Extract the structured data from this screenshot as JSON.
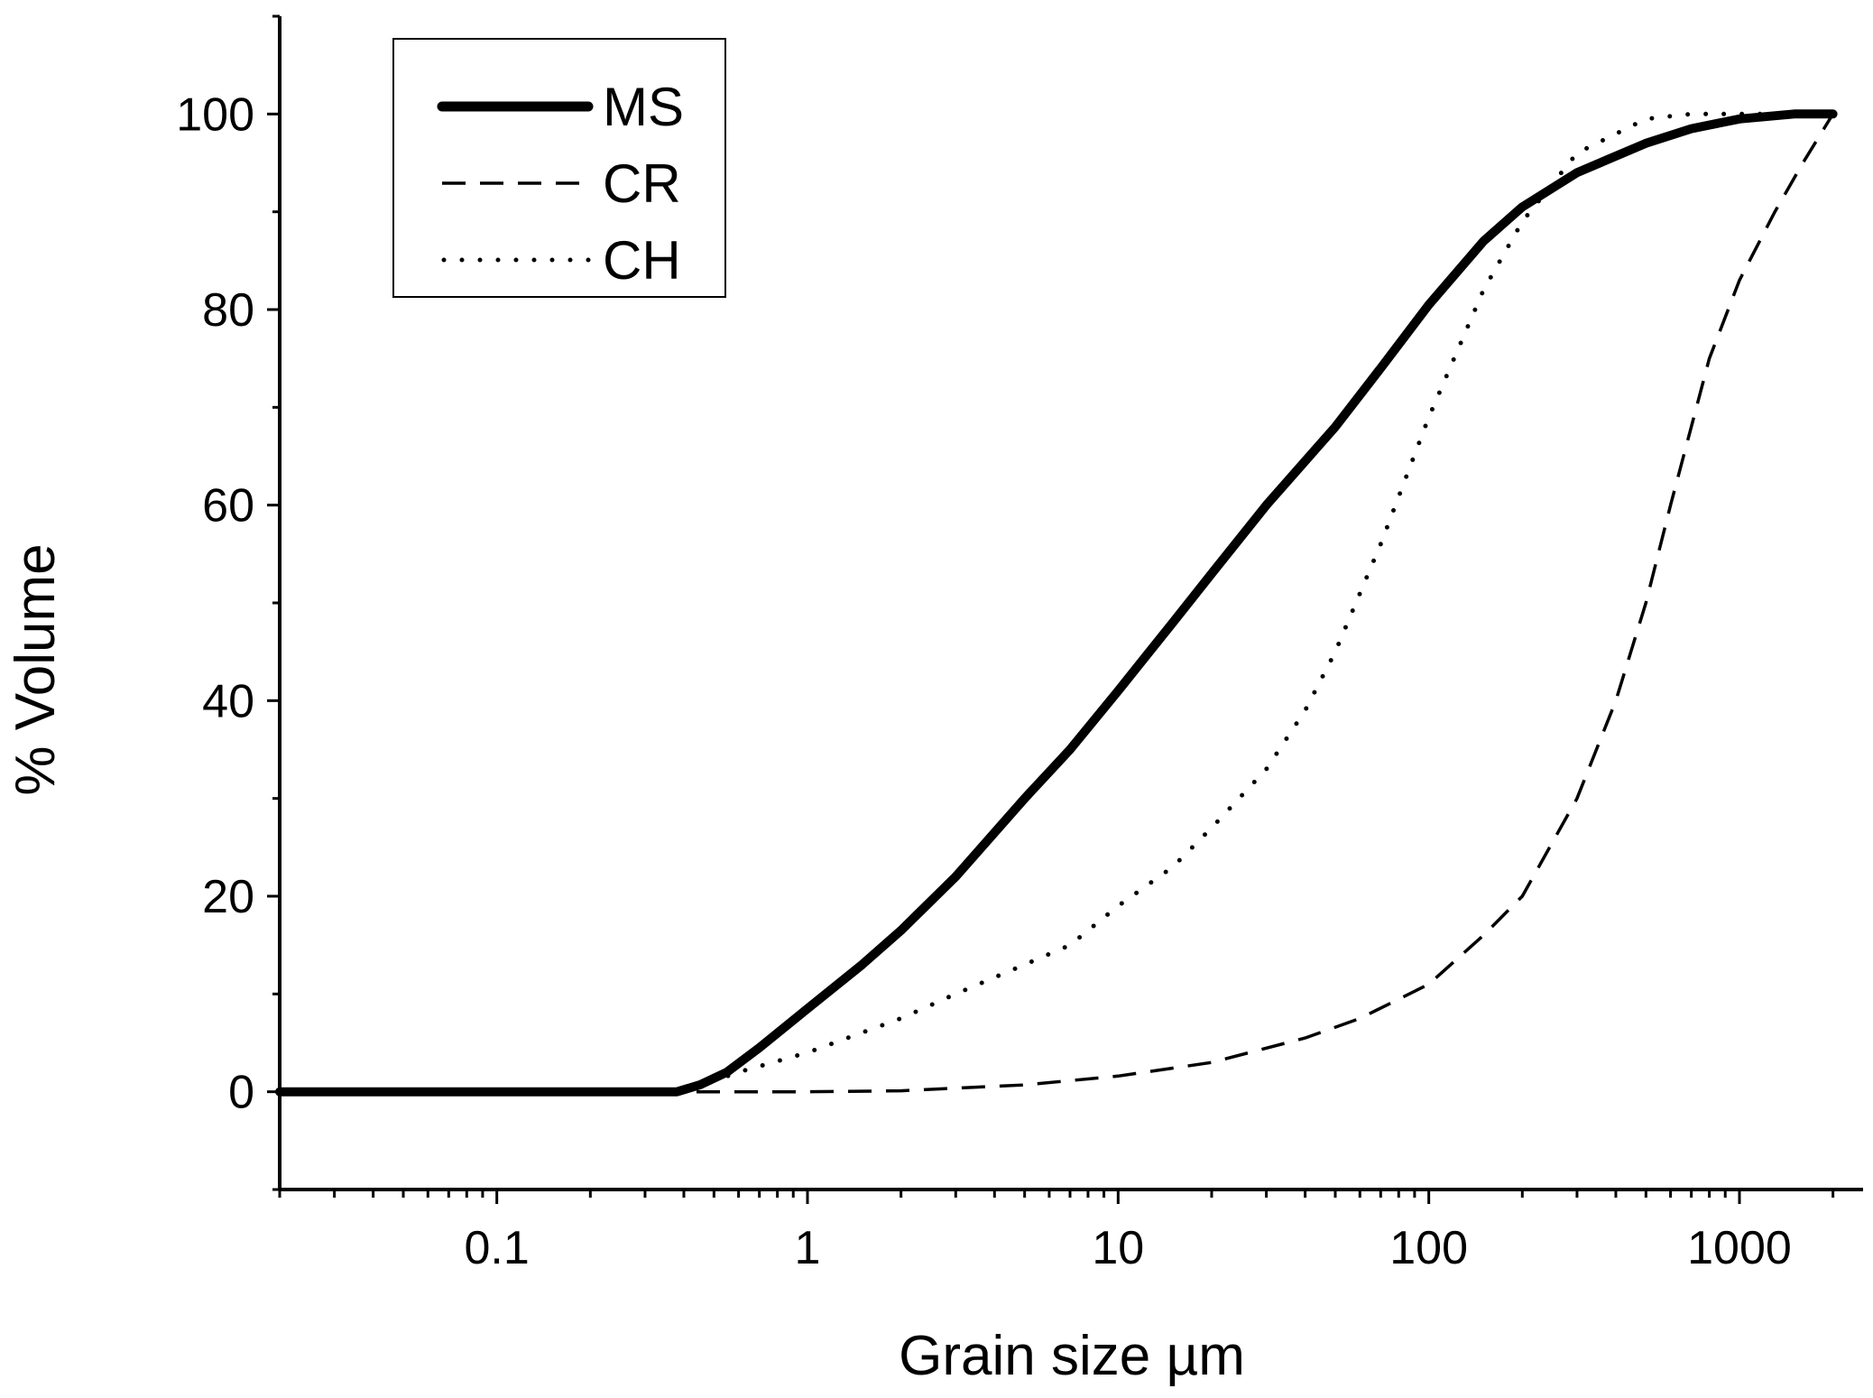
{
  "chart_data": {
    "type": "line",
    "title": "",
    "xlabel": "Grain size µm",
    "ylabel": "% Volume",
    "xscale": "log",
    "xlim": [
      0.02,
      2500
    ],
    "ylim": [
      -10,
      110
    ],
    "xticks": [
      {
        "value": 0.1,
        "label": "0.1"
      },
      {
        "value": 1,
        "label": "1"
      },
      {
        "value": 10,
        "label": "10"
      },
      {
        "value": 100,
        "label": "100"
      },
      {
        "value": 1000,
        "label": "1000"
      }
    ],
    "yticks": [
      {
        "value": 0,
        "label": "0"
      },
      {
        "value": 20,
        "label": "20"
      },
      {
        "value": 40,
        "label": "40"
      },
      {
        "value": 60,
        "label": "60"
      },
      {
        "value": 80,
        "label": "80"
      },
      {
        "value": 100,
        "label": "100"
      }
    ],
    "legend_position": "top-left",
    "series": [
      {
        "name": "MS",
        "style": "solid",
        "x": [
          0.02,
          0.2,
          0.38,
          0.45,
          0.55,
          0.7,
          1,
          1.5,
          2,
          3,
          5,
          7,
          10,
          15,
          20,
          30,
          50,
          70,
          100,
          150,
          200,
          300,
          500,
          700,
          1000,
          1500,
          2000
        ],
        "y": [
          0,
          0,
          0,
          0.7,
          2,
          4.5,
          8.5,
          13,
          16.5,
          22,
          30,
          35,
          41,
          48,
          53,
          60,
          68,
          74,
          80.5,
          87,
          90.5,
          94,
          97,
          98.5,
          99.5,
          100,
          100
        ]
      },
      {
        "name": "CR",
        "style": "dashed",
        "x": [
          0.02,
          0.2,
          0.4,
          1,
          2,
          5,
          10,
          20,
          40,
          60,
          100,
          150,
          200,
          300,
          400,
          500,
          600,
          700,
          800,
          1000,
          1300,
          1600,
          2000
        ],
        "y": [
          0,
          0,
          0,
          0,
          0.1,
          0.7,
          1.6,
          3,
          5.5,
          7.5,
          11,
          16,
          20,
          30,
          40,
          50,
          60,
          68,
          75,
          83,
          90,
          95,
          100
        ]
      },
      {
        "name": "CH",
        "style": "dotted",
        "x": [
          0.02,
          0.2,
          0.4,
          0.6,
          1,
          2,
          3,
          5,
          7,
          10,
          15,
          20,
          30,
          40,
          50,
          70,
          100,
          150,
          200,
          300,
          500,
          700,
          1000,
          2000
        ],
        "y": [
          0,
          0,
          0,
          2,
          4,
          7.5,
          10,
          13,
          15,
          19,
          23,
          27,
          33,
          39,
          45,
          56,
          69,
          82,
          89,
          96,
          99.5,
          100,
          100,
          100
        ]
      }
    ]
  }
}
